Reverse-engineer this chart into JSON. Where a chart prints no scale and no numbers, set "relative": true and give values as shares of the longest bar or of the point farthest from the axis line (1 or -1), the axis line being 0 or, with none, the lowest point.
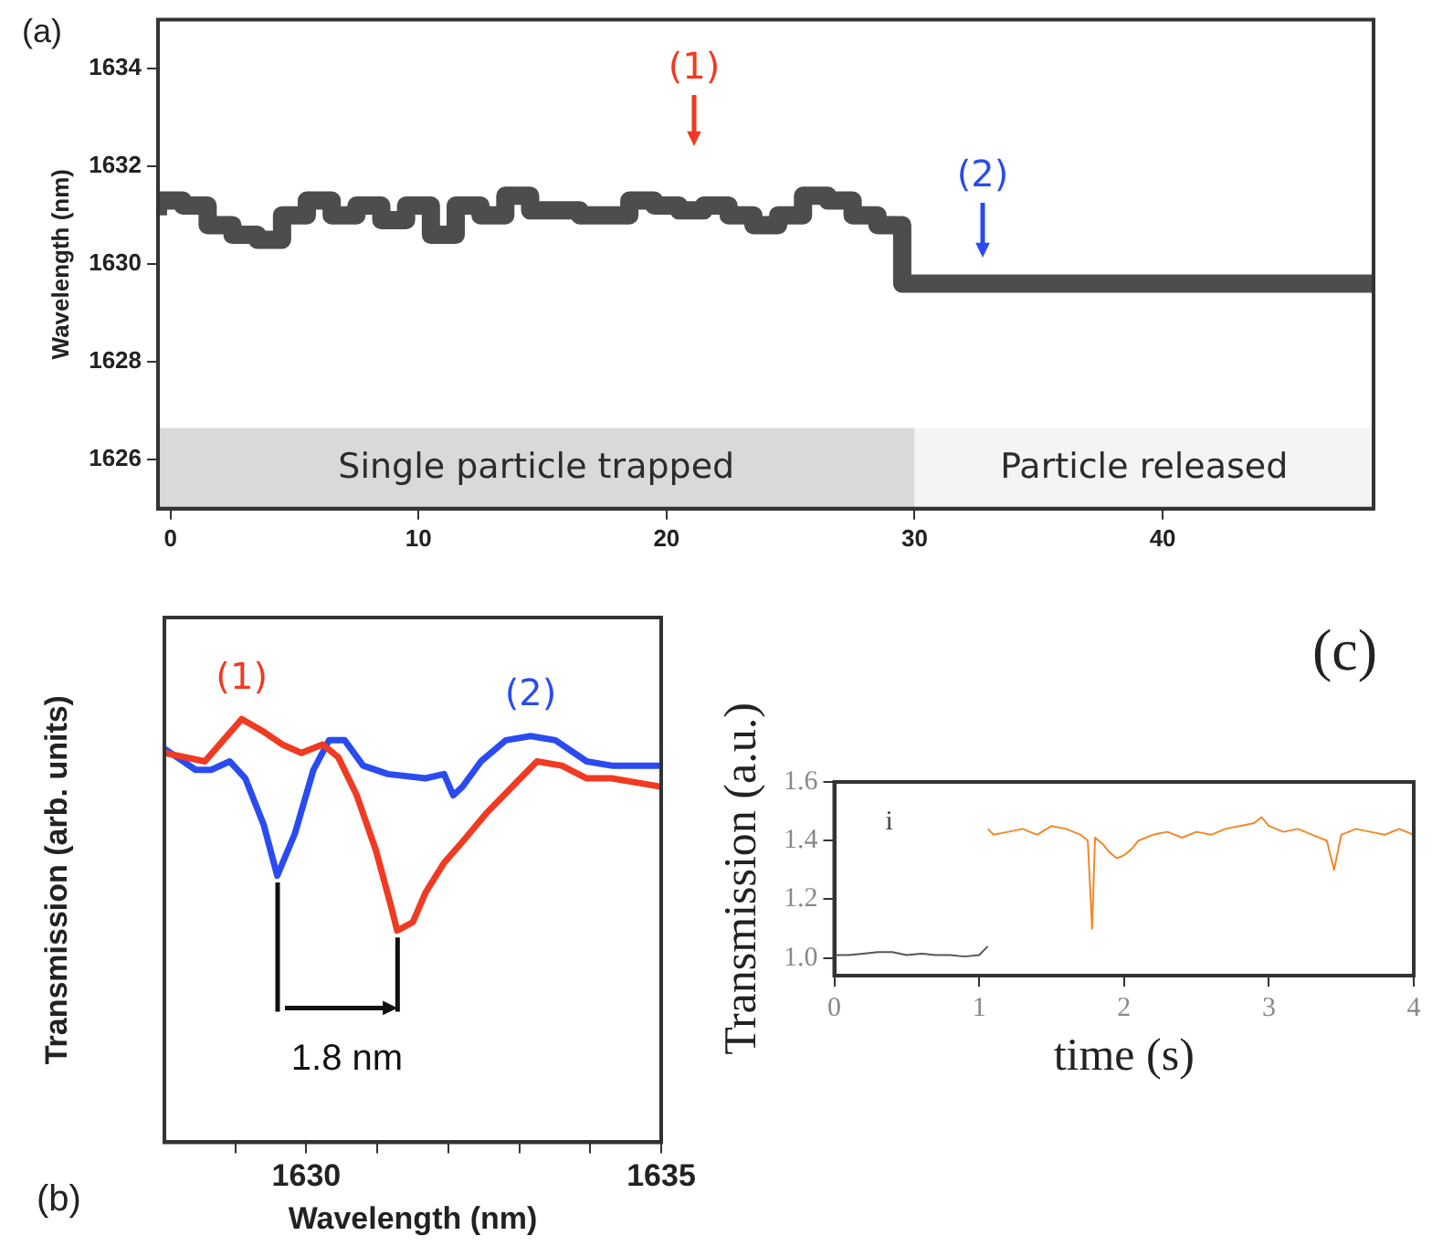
{
  "chart_data": [
    {
      "type": "step",
      "ylabel": "Wavelength (nm)",
      "xlim": [
        -0.5,
        48.5
      ],
      "xticks": [
        0,
        10,
        20,
        30,
        40
      ],
      "ylim": [
        1625,
        1635
      ],
      "yticks": [
        1626,
        1628,
        1630,
        1632,
        1634
      ],
      "marker": "none",
      "x": [
        -0.5,
        0.5,
        1.5,
        2.5,
        3.5,
        4.5,
        5.5,
        6.5,
        7.5,
        8.5,
        9.5,
        10.5,
        11.5,
        12.5,
        13.5,
        14.5,
        15.5,
        16.5,
        17.5,
        18.5,
        19.5,
        20.5,
        21.5,
        22.5,
        23.5,
        24.5,
        25.5,
        26.5,
        27.5,
        28.5,
        29.5,
        30.5,
        48.5
      ],
      "series": [
        {
          "color": "#4d4d4d",
          "values": [
            1631.0,
            1631.3,
            1631.2,
            1630.8,
            1630.6,
            1630.5,
            1631.0,
            1631.3,
            1631.0,
            1631.2,
            1630.9,
            1631.2,
            1630.6,
            1631.2,
            1631.0,
            1631.4,
            1631.1,
            1631.1,
            1631.0,
            1631.0,
            1631.3,
            1631.2,
            1631.1,
            1631.2,
            1631.0,
            1630.8,
            1631.0,
            1631.4,
            1631.3,
            1631.0,
            1630.8,
            1629.6,
            1629.6
          ]
        }
      ],
      "bands": [
        {
          "axis": "x",
          "from": -0.5,
          "to": 30,
          "label": "Single particle trapped",
          "color": "#d9d9d9"
        },
        {
          "axis": "x",
          "from": 30,
          "to": 48.5,
          "label": "Particle released",
          "color": "#f4f4f4"
        }
      ],
      "annotations": [
        "(a)",
        "(1)",
        "(2)"
      ]
    },
    {
      "type": "line",
      "relative": true,
      "xlabel": "Wavelength (nm)",
      "ylabel": "Transmission (arb. units)",
      "xlim": [
        1628,
        1635
      ],
      "xticks": [
        {
          "value": 1629,
          "label": null
        },
        1630,
        {
          "value": 1631,
          "label": null
        },
        {
          "value": 1632,
          "label": null
        },
        {
          "value": 1633,
          "label": null
        },
        {
          "value": 1634,
          "label": null
        },
        1635
      ],
      "marker": "none",
      "series": [
        {
          "name": "(1)",
          "color": "#f03a22",
          "x": [
            1628.0,
            1628.57,
            1628.83,
            1629.09,
            1629.4,
            1629.66,
            1629.93,
            1630.23,
            1630.45,
            1630.71,
            1630.98,
            1631.19,
            1631.28,
            1631.5,
            1631.68,
            1631.94,
            1632.2,
            1632.55,
            1632.9,
            1633.25,
            1633.6,
            1633.95,
            1634.3,
            1634.65,
            1635.0
          ],
          "values": [
            0.92,
            0.9,
            0.95,
            1.0,
            0.97,
            0.94,
            0.92,
            0.94,
            0.91,
            0.82,
            0.69,
            0.56,
            0.5,
            0.52,
            0.59,
            0.66,
            0.71,
            0.78,
            0.84,
            0.9,
            0.89,
            0.86,
            0.86,
            0.85,
            0.84
          ]
        },
        {
          "name": "(2)",
          "color": "#2a4bf0",
          "x": [
            1628.0,
            1628.44,
            1628.66,
            1628.92,
            1629.14,
            1629.4,
            1629.59,
            1629.84,
            1630.1,
            1630.32,
            1630.54,
            1630.8,
            1631.15,
            1631.68,
            1631.94,
            1632.07,
            1632.2,
            1632.46,
            1632.81,
            1633.16,
            1633.51,
            1633.95,
            1634.3,
            1635.0
          ],
          "values": [
            0.93,
            0.88,
            0.88,
            0.9,
            0.86,
            0.75,
            0.63,
            0.73,
            0.88,
            0.95,
            0.95,
            0.89,
            0.87,
            0.86,
            0.87,
            0.82,
            0.84,
            0.9,
            0.95,
            0.96,
            0.95,
            0.9,
            0.89,
            0.89
          ]
        }
      ],
      "annotations": [
        "(b)",
        "1.8 nm"
      ]
    },
    {
      "type": "line",
      "xlabel": "time (s)",
      "ylabel": "Transmission (a.u.)",
      "xlim": [
        0,
        4
      ],
      "xticks": [
        0,
        1,
        2,
        3,
        4
      ],
      "ylim": [
        0.94,
        1.6
      ],
      "yticks": [
        {
          "value": 1,
          "label": "1.0"
        },
        1.2,
        1.4,
        1.6
      ],
      "marker": "none",
      "series": [
        {
          "color": "#555555",
          "x": [
            0,
            0.1,
            0.2,
            0.3,
            0.4,
            0.5,
            0.6,
            0.7,
            0.8,
            0.9,
            1.0,
            1.04,
            1.06
          ],
          "values": [
            1.01,
            1.01,
            1.015,
            1.02,
            1.02,
            1.01,
            1.015,
            1.01,
            1.01,
            1.005,
            1.01,
            1.03,
            1.04
          ]
        },
        {
          "color": "#f0892a",
          "x": [
            1.06,
            1.1,
            1.2,
            1.3,
            1.4,
            1.5,
            1.6,
            1.7,
            1.75,
            1.78,
            1.8,
            1.85,
            1.9,
            1.95,
            2.0,
            2.05,
            2.1,
            2.2,
            2.3,
            2.4,
            2.5,
            2.6,
            2.7,
            2.8,
            2.9,
            2.95,
            3.0,
            3.1,
            3.2,
            3.3,
            3.4,
            3.45,
            3.5,
            3.6,
            3.7,
            3.8,
            3.9,
            4.0
          ],
          "values": [
            1.44,
            1.42,
            1.43,
            1.44,
            1.42,
            1.45,
            1.44,
            1.42,
            1.4,
            1.1,
            1.41,
            1.39,
            1.36,
            1.34,
            1.35,
            1.37,
            1.4,
            1.42,
            1.43,
            1.41,
            1.43,
            1.42,
            1.44,
            1.45,
            1.46,
            1.48,
            1.45,
            1.43,
            1.44,
            1.42,
            1.4,
            1.3,
            1.42,
            1.44,
            1.43,
            1.42,
            1.44,
            1.42
          ]
        }
      ],
      "annotations": [
        "(c)",
        "i"
      ]
    }
  ]
}
